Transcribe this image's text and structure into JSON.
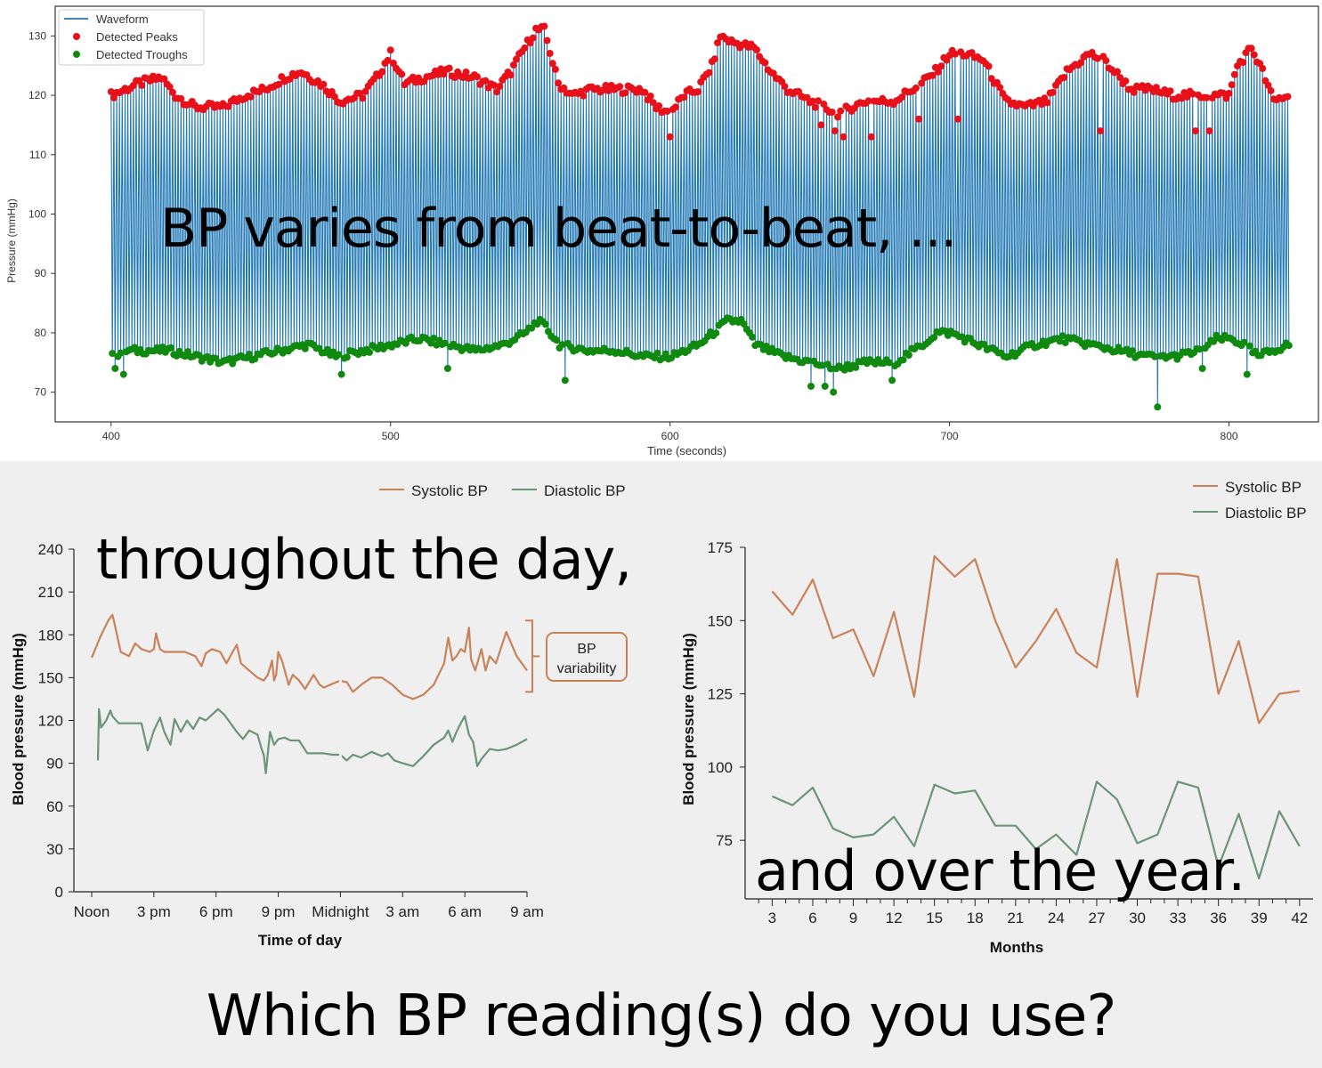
{
  "overlays": {
    "top": "BP varies from beat-to-beat, ...",
    "day": "throughout the day,",
    "year": "and over the year.",
    "question": "Which BP reading(s) do you use?"
  },
  "colors": {
    "waveform": "#1f77b4",
    "peaks": "#e8111a",
    "troughs": "#0f8a0f",
    "systolic": "#c8825a",
    "diastolic": "#6b9478",
    "panel_bg": "#efefef"
  },
  "chart_data": [
    {
      "id": "beat",
      "type": "line",
      "xlabel": "Time (seconds)",
      "ylabel": "Pressure (mmHg)",
      "xlim": [
        380,
        832
      ],
      "ylim": [
        65,
        135
      ],
      "xticks": [
        400,
        500,
        600,
        700,
        800
      ],
      "yticks": [
        70,
        80,
        90,
        100,
        110,
        120,
        130
      ],
      "legend_position": "top-left",
      "series": [
        {
          "name": "Waveform",
          "kind": "line",
          "color_key": "waveform"
        },
        {
          "name": "Detected Peaks",
          "kind": "marker",
          "color_key": "peaks"
        },
        {
          "name": "Detected Troughs",
          "kind": "marker",
          "color_key": "troughs"
        }
      ],
      "x_range": [
        400,
        821
      ],
      "beat_interval_s": 1.0,
      "peak_envelope": {
        "x": [
          400,
          405,
          410,
          418,
          423,
          430,
          440,
          448,
          455,
          462,
          468,
          475,
          482,
          490,
          495,
          500,
          505,
          512,
          520,
          530,
          538,
          543,
          548,
          552,
          555,
          560,
          565,
          572,
          580,
          590,
          595,
          600,
          605,
          610,
          615,
          618,
          622,
          630,
          636,
          642,
          650,
          660,
          670,
          680,
          690,
          695,
          700,
          705,
          712,
          720,
          727,
          735,
          742,
          750,
          755,
          765,
          772,
          780,
          790,
          800,
          803,
          808,
          812,
          816,
          821
        ],
        "y": [
          120,
          121,
          122,
          123,
          120,
          118,
          118,
          120,
          121,
          123,
          124,
          122,
          119,
          120,
          123,
          127,
          122,
          123,
          124,
          123,
          121,
          124,
          128,
          131,
          131,
          122,
          120,
          121,
          121,
          121,
          118,
          117,
          120,
          121,
          125,
          130,
          129,
          128,
          124,
          121,
          119,
          117,
          119,
          119,
          122,
          124,
          127,
          127,
          126,
          119,
          118,
          119,
          124,
          127,
          126,
          121,
          121,
          120,
          120,
          120,
          125,
          128,
          124,
          119,
          120
        ]
      },
      "trough_envelope": {
        "x": [
          400,
          405,
          410,
          420,
          430,
          440,
          450,
          460,
          470,
          480,
          490,
          500,
          510,
          520,
          530,
          540,
          548,
          552,
          555,
          560,
          570,
          580,
          590,
          600,
          610,
          615,
          620,
          625,
          630,
          640,
          650,
          660,
          670,
          680,
          690,
          695,
          700,
          705,
          710,
          720,
          730,
          740,
          750,
          760,
          770,
          780,
          790,
          795,
          800,
          805,
          810,
          815,
          821
        ],
        "y": [
          76,
          77,
          77,
          77,
          76,
          75,
          76,
          77,
          78,
          76,
          77,
          78,
          79,
          78,
          77,
          78,
          80,
          82,
          81,
          78,
          77,
          77,
          76,
          76,
          78,
          80,
          82,
          82,
          78,
          76,
          75,
          74,
          75,
          75,
          78,
          80,
          80,
          79,
          78,
          76,
          78,
          79,
          78,
          77,
          76,
          76,
          77,
          79,
          79,
          78,
          76,
          77,
          78
        ]
      },
      "outlier_troughs": [
        [
          401,
          74
        ],
        [
          404,
          73
        ],
        [
          482,
          73
        ],
        [
          520,
          74
        ],
        [
          562,
          72
        ],
        [
          650,
          71
        ],
        [
          655,
          71
        ],
        [
          658,
          70
        ],
        [
          679,
          72
        ],
        [
          774,
          67.5
        ],
        [
          790,
          74
        ],
        [
          806,
          73
        ]
      ],
      "outlier_peaks": [
        [
          600,
          113
        ],
        [
          654,
          115
        ],
        [
          659,
          114
        ],
        [
          662,
          113
        ],
        [
          672,
          113
        ],
        [
          689,
          116
        ],
        [
          703,
          116
        ],
        [
          754,
          114
        ],
        [
          788,
          114
        ],
        [
          793,
          114
        ]
      ]
    },
    {
      "id": "daily",
      "type": "line",
      "xlabel": "Time of day",
      "ylabel": "Blood pressure (mmHg)",
      "ylim": [
        0,
        240
      ],
      "yticks": [
        0,
        30,
        60,
        90,
        120,
        150,
        180,
        210,
        240
      ],
      "categories": [
        "Noon",
        "3 pm",
        "6 pm",
        "9 pm",
        "Midnight",
        "3 am",
        "6 am",
        "9 am"
      ],
      "xlim": [
        0,
        21
      ],
      "legend_position": "top-center",
      "annotation": "BP\nvariability",
      "annotation_range": [
        140,
        190
      ],
      "series": [
        {
          "name": "Systolic BP",
          "color_key": "systolic",
          "x": [
            0,
            0.4,
            0.8,
            1.0,
            1.1,
            1.4,
            1.8,
            2.1,
            2.4,
            2.8,
            3.0,
            3.1,
            3.3,
            3.5,
            4.0,
            4.5,
            5.0,
            5.3,
            5.5,
            5.8,
            6.2,
            6.5,
            6.8,
            7.0,
            7.2,
            7.6,
            8.0,
            8.3,
            8.5,
            8.7,
            8.8,
            8.9,
            9.0,
            9.2,
            9.5,
            9.7,
            10.0,
            10.3,
            10.7,
            11.0,
            11.2,
            11.5,
            12.0,
            12.2,
            12.3,
            12.6,
            13.0,
            13.5,
            14.0,
            14.5,
            15.0,
            15.5,
            16.0,
            16.5,
            17.0,
            17.2,
            17.4,
            17.6,
            17.8,
            18.0,
            18.2,
            18.3,
            18.5,
            18.8,
            19.0,
            19.2,
            19.5,
            20.0,
            20.5,
            21.0
          ],
          "y": [
            164,
            178,
            190,
            194,
            188,
            168,
            165,
            174,
            170,
            168,
            170,
            181,
            170,
            168,
            168,
            168,
            165,
            158,
            167,
            170,
            168,
            160,
            168,
            173,
            160,
            155,
            150,
            148,
            152,
            162,
            148,
            152,
            168,
            161,
            145,
            152,
            148,
            142,
            152,
            145,
            143,
            145,
            148,
            147,
            147,
            140,
            145,
            150,
            150,
            145,
            138,
            135,
            138,
            145,
            160,
            178,
            162,
            165,
            170,
            168,
            185,
            163,
            155,
            170,
            155,
            165,
            160,
            182,
            165,
            155
          ]
        },
        {
          "name": "Diastolic BP",
          "color_key": "diastolic",
          "x": [
            0.3,
            0.35,
            0.45,
            0.7,
            0.9,
            1.0,
            1.3,
            1.8,
            2.3,
            2.4,
            2.7,
            3.0,
            3.3,
            3.5,
            3.8,
            4.0,
            4.3,
            4.6,
            4.9,
            5.2,
            5.5,
            5.8,
            6.1,
            6.4,
            6.7,
            7.0,
            7.3,
            7.6,
            8.0,
            8.2,
            8.3,
            8.4,
            8.6,
            8.8,
            9.0,
            9.3,
            9.6,
            10.0,
            10.4,
            10.8,
            11.2,
            11.6,
            12.0,
            12.3,
            12.6,
            13.0,
            13.5,
            14.0,
            14.3,
            14.6,
            15.0,
            15.5,
            16.0,
            16.5,
            17.0,
            17.2,
            17.4,
            17.6,
            17.8,
            18.0,
            18.2,
            18.4,
            18.6,
            18.8,
            19.2,
            19.6,
            20.0,
            20.5,
            21.0
          ],
          "y": [
            92,
            128,
            115,
            120,
            127,
            123,
            118,
            118,
            118,
            118,
            99,
            113,
            122,
            112,
            103,
            121,
            112,
            120,
            114,
            122,
            120,
            124,
            128,
            124,
            118,
            112,
            107,
            113,
            110,
            100,
            96,
            83,
            112,
            103,
            107,
            108,
            106,
            106,
            97,
            97,
            97,
            96,
            96,
            92,
            96,
            94,
            98,
            95,
            97,
            92,
            90,
            88,
            95,
            103,
            108,
            113,
            105,
            112,
            118,
            123,
            110,
            105,
            88,
            93,
            100,
            99,
            100,
            103,
            107
          ]
        }
      ]
    },
    {
      "id": "yearly",
      "type": "line",
      "xlabel": "Months",
      "ylabel": "Blood pressure (mmHg)",
      "xlim": [
        1,
        43
      ],
      "ylim": [
        55,
        175
      ],
      "yticks": [
        75,
        100,
        125,
        150,
        175
      ],
      "xticks": [
        3,
        6,
        9,
        12,
        15,
        18,
        21,
        24,
        27,
        30,
        33,
        36,
        39,
        42
      ],
      "legend_position": "top-right",
      "series": [
        {
          "name": "Systolic BP",
          "color_key": "systolic",
          "x": [
            3,
            4.5,
            6,
            7.5,
            9,
            10.5,
            12,
            13.5,
            15,
            16.5,
            18,
            19.5,
            21,
            22.5,
            24,
            25.5,
            27,
            28.5,
            30,
            31.5,
            33,
            34.5,
            36,
            37.5,
            39,
            40.5,
            42
          ],
          "y": [
            160,
            152,
            164,
            144,
            147,
            131,
            153,
            124,
            172,
            165,
            171,
            150,
            134,
            143,
            154,
            139,
            134,
            171,
            124,
            166,
            166,
            165,
            125,
            143,
            115,
            125,
            126
          ]
        },
        {
          "name": "Diastolic BP",
          "color_key": "diastolic",
          "x": [
            3,
            4.5,
            6,
            7.5,
            9,
            10.5,
            12,
            13.5,
            15,
            16.5,
            18,
            19.5,
            21,
            22.5,
            24,
            25.5,
            27,
            28.5,
            30,
            31.5,
            33,
            34.5,
            36,
            37.5,
            39,
            40.5,
            42
          ],
          "y": [
            90,
            87,
            93,
            79,
            76,
            77,
            83,
            73,
            94,
            91,
            92,
            80,
            80,
            72,
            77,
            70,
            95,
            89,
            74,
            77,
            95,
            93,
            66,
            84,
            62,
            85,
            73
          ]
        }
      ]
    }
  ]
}
